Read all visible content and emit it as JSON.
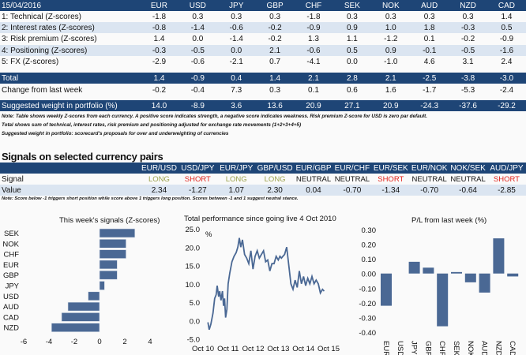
{
  "scorecard": {
    "date": "15/04/2016",
    "currencies": [
      "EUR",
      "USD",
      "JPY",
      "GBP",
      "CHF",
      "SEK",
      "NOK",
      "AUD",
      "NZD",
      "CAD"
    ],
    "rows": [
      {
        "label": "1: Technical (Z-scores)",
        "values": [
          "-1.8",
          "0.3",
          "0.3",
          "0.3",
          "-1.8",
          "0.3",
          "0.3",
          "0.3",
          "0.3",
          "1.4"
        ]
      },
      {
        "label": "2: Interest rates (Z-scores)",
        "values": [
          "-0.8",
          "-1.4",
          "-0.6",
          "-0.2",
          "-0.9",
          "0.9",
          "1.0",
          "1.8",
          "-0.3",
          "0.5"
        ]
      },
      {
        "label": "3: Risk premium (Z-scores)",
        "values": [
          "1.4",
          "0.0",
          "-1.4",
          "-0.2",
          "1.3",
          "1.1",
          "-1.2",
          "0.1",
          "-0.2",
          "-0.9"
        ]
      },
      {
        "label": "4: Positioning (Z-scores)",
        "values": [
          "-0.3",
          "-0.5",
          "0.0",
          "2.1",
          "-0.6",
          "0.5",
          "0.9",
          "-0.1",
          "-0.5",
          "-1.6"
        ]
      },
      {
        "label": "5: FX (Z-scores)",
        "values": [
          "-2.9",
          "-0.6",
          "-2.1",
          "0.7",
          "-4.1",
          "0.0",
          "-1.0",
          "4.6",
          "3.1",
          "2.4"
        ]
      }
    ],
    "total": {
      "label": "Total",
      "values": [
        "1.4",
        "-0.9",
        "0.4",
        "1.4",
        "2.1",
        "2.8",
        "2.1",
        "-2.5",
        "-3.8",
        "-3.0"
      ]
    },
    "change": {
      "label": "Change from last week",
      "values": [
        "-0.2",
        "-0.4",
        "7.3",
        "0.3",
        "0.1",
        "0.6",
        "1.6",
        "-1.7",
        "-5.3",
        "-2.4"
      ]
    },
    "weight": {
      "label": "Suggested weight in portfolio (%)",
      "values": [
        "14.0",
        "-8.9",
        "3.6",
        "13.6",
        "20.9",
        "27.1",
        "20.9",
        "-24.3",
        "-37.6",
        "-29.2"
      ]
    },
    "notes": [
      "Note: Table shows weekly Z-scores from each currency. A positive score indicates strength, a negative score indicates weakness. Risk premium Z-score for USD is zero par default.",
      "Total shows sum of technical, interest rates, risk premium and positioning adjusted for exchange rate movements (1+2+3+4+5)",
      "Suggested weight in portfolio: scorecard's proposals for over and underweighting of currencies"
    ]
  },
  "signals": {
    "title": "Signals on selected currency pairs",
    "pairs": [
      "EUR/USD",
      "USD/JPY",
      "EUR/JPY",
      "GBP/USD",
      "EUR/GBP",
      "EUR/CHF",
      "EUR/SEK",
      "EUR/NOK",
      "NOK/SEK",
      "AUD/JPY"
    ],
    "signal_label": "Signal",
    "signals": [
      "LONG",
      "SHORT",
      "LONG",
      "LONG",
      "NEUTRAL",
      "NEUTRAL",
      "SHORT",
      "NEUTRAL",
      "NEUTRAL",
      "SHORT"
    ],
    "value_label": "Value",
    "values": [
      "2.34",
      "-1.27",
      "1.07",
      "2.30",
      "0.04",
      "-0.70",
      "-1.34",
      "-0.70",
      "-0.64",
      "-2.85"
    ],
    "note": "Note: Score below -1 triggers short position while score above 1 triggers long position. Scores between -1 and 1 suggest neutral stance.",
    "colors": {
      "LONG": "#9ba24c",
      "SHORT": "#e2231a",
      "NEUTRAL": "#111111"
    }
  },
  "chart_data": [
    {
      "type": "bar",
      "orientation": "horizontal",
      "title": "This week's signals (Z-scores)",
      "categories": [
        "SEK",
        "NOK",
        "CHF",
        "EUR",
        "GBP",
        "JPY",
        "USD",
        "AUD",
        "CAD",
        "NZD"
      ],
      "values": [
        2.8,
        2.1,
        2.1,
        1.4,
        1.4,
        0.4,
        -0.9,
        -2.5,
        -3.0,
        -3.8
      ],
      "xlim": [
        -6,
        4
      ],
      "xticks": [
        "-6",
        "-4",
        "-2",
        "0",
        "2",
        "4"
      ],
      "color": "#4a6894"
    },
    {
      "type": "line",
      "title": "Total performance since going live 4 Oct 2010",
      "ylabel": "%",
      "ylim": [
        -5,
        25
      ],
      "yticks": [
        "25.0",
        "20.0",
        "15.0",
        "10.0",
        "5.0",
        "0.0",
        "-5.0"
      ],
      "xticks": [
        "Oct 10",
        "Oct 11",
        "Oct 12",
        "Oct 13",
        "Oct 14",
        "Oct 15"
      ],
      "xlim": [
        2010.75,
        2016.3
      ],
      "x": [
        2010.76,
        2010.82,
        2010.9,
        2011.0,
        2011.08,
        2011.15,
        2011.2,
        2011.27,
        2011.32,
        2011.38,
        2011.45,
        2011.5,
        2011.55,
        2011.6,
        2011.66,
        2011.72,
        2011.8,
        2011.9,
        2012.0,
        2012.1,
        2012.18,
        2012.25,
        2012.32,
        2012.4,
        2012.5,
        2012.6,
        2012.7,
        2012.8,
        2012.9,
        2013.0,
        2013.1,
        2013.2,
        2013.3,
        2013.4,
        2013.5,
        2013.6,
        2013.7,
        2013.8,
        2013.9,
        2014.0,
        2014.1,
        2014.18,
        2014.25,
        2014.32,
        2014.4,
        2014.5,
        2014.6,
        2014.7,
        2014.8,
        2014.9,
        2015.0,
        2015.1,
        2015.2,
        2015.3,
        2015.4,
        2015.5,
        2015.6,
        2015.7,
        2015.8,
        2015.9,
        2016.0,
        2016.1,
        2016.2,
        2016.28
      ],
      "y": [
        -0.5,
        -2.5,
        -1,
        2,
        6,
        7,
        9.5,
        6.5,
        8,
        5.5,
        8,
        4,
        6,
        0.8,
        3,
        10,
        13,
        16,
        17.5,
        18.5,
        20,
        22.5,
        20,
        22,
        18,
        17,
        15.5,
        19,
        14,
        17.5,
        19,
        17,
        18,
        19,
        16,
        16.5,
        13.5,
        15.5,
        15.5,
        17.5,
        16.5,
        17.5,
        17,
        17.5,
        18,
        20,
        15,
        10,
        8.5,
        11,
        9,
        13.5,
        10,
        12,
        9.5,
        11.5,
        10,
        12,
        10,
        11,
        10,
        7.5,
        8.5,
        8
      ],
      "color": "#4a6894"
    },
    {
      "type": "bar",
      "title": "P/L from last week (%)",
      "categories": [
        "EUR",
        "USD",
        "JPY",
        "GBP",
        "CHF",
        "SEK",
        "NOK",
        "AUD",
        "NZD",
        "CAD"
      ],
      "values": [
        -0.22,
        0.0,
        0.08,
        0.04,
        -0.36,
        0.01,
        -0.06,
        -0.13,
        0.24,
        -0.02
      ],
      "ylim": [
        -0.4,
        0.3
      ],
      "yticks": [
        "0.30",
        "0.20",
        "0.10",
        "0.00",
        "-0.10",
        "-0.20",
        "-0.30",
        "-0.40"
      ],
      "color": "#4a6894"
    }
  ]
}
